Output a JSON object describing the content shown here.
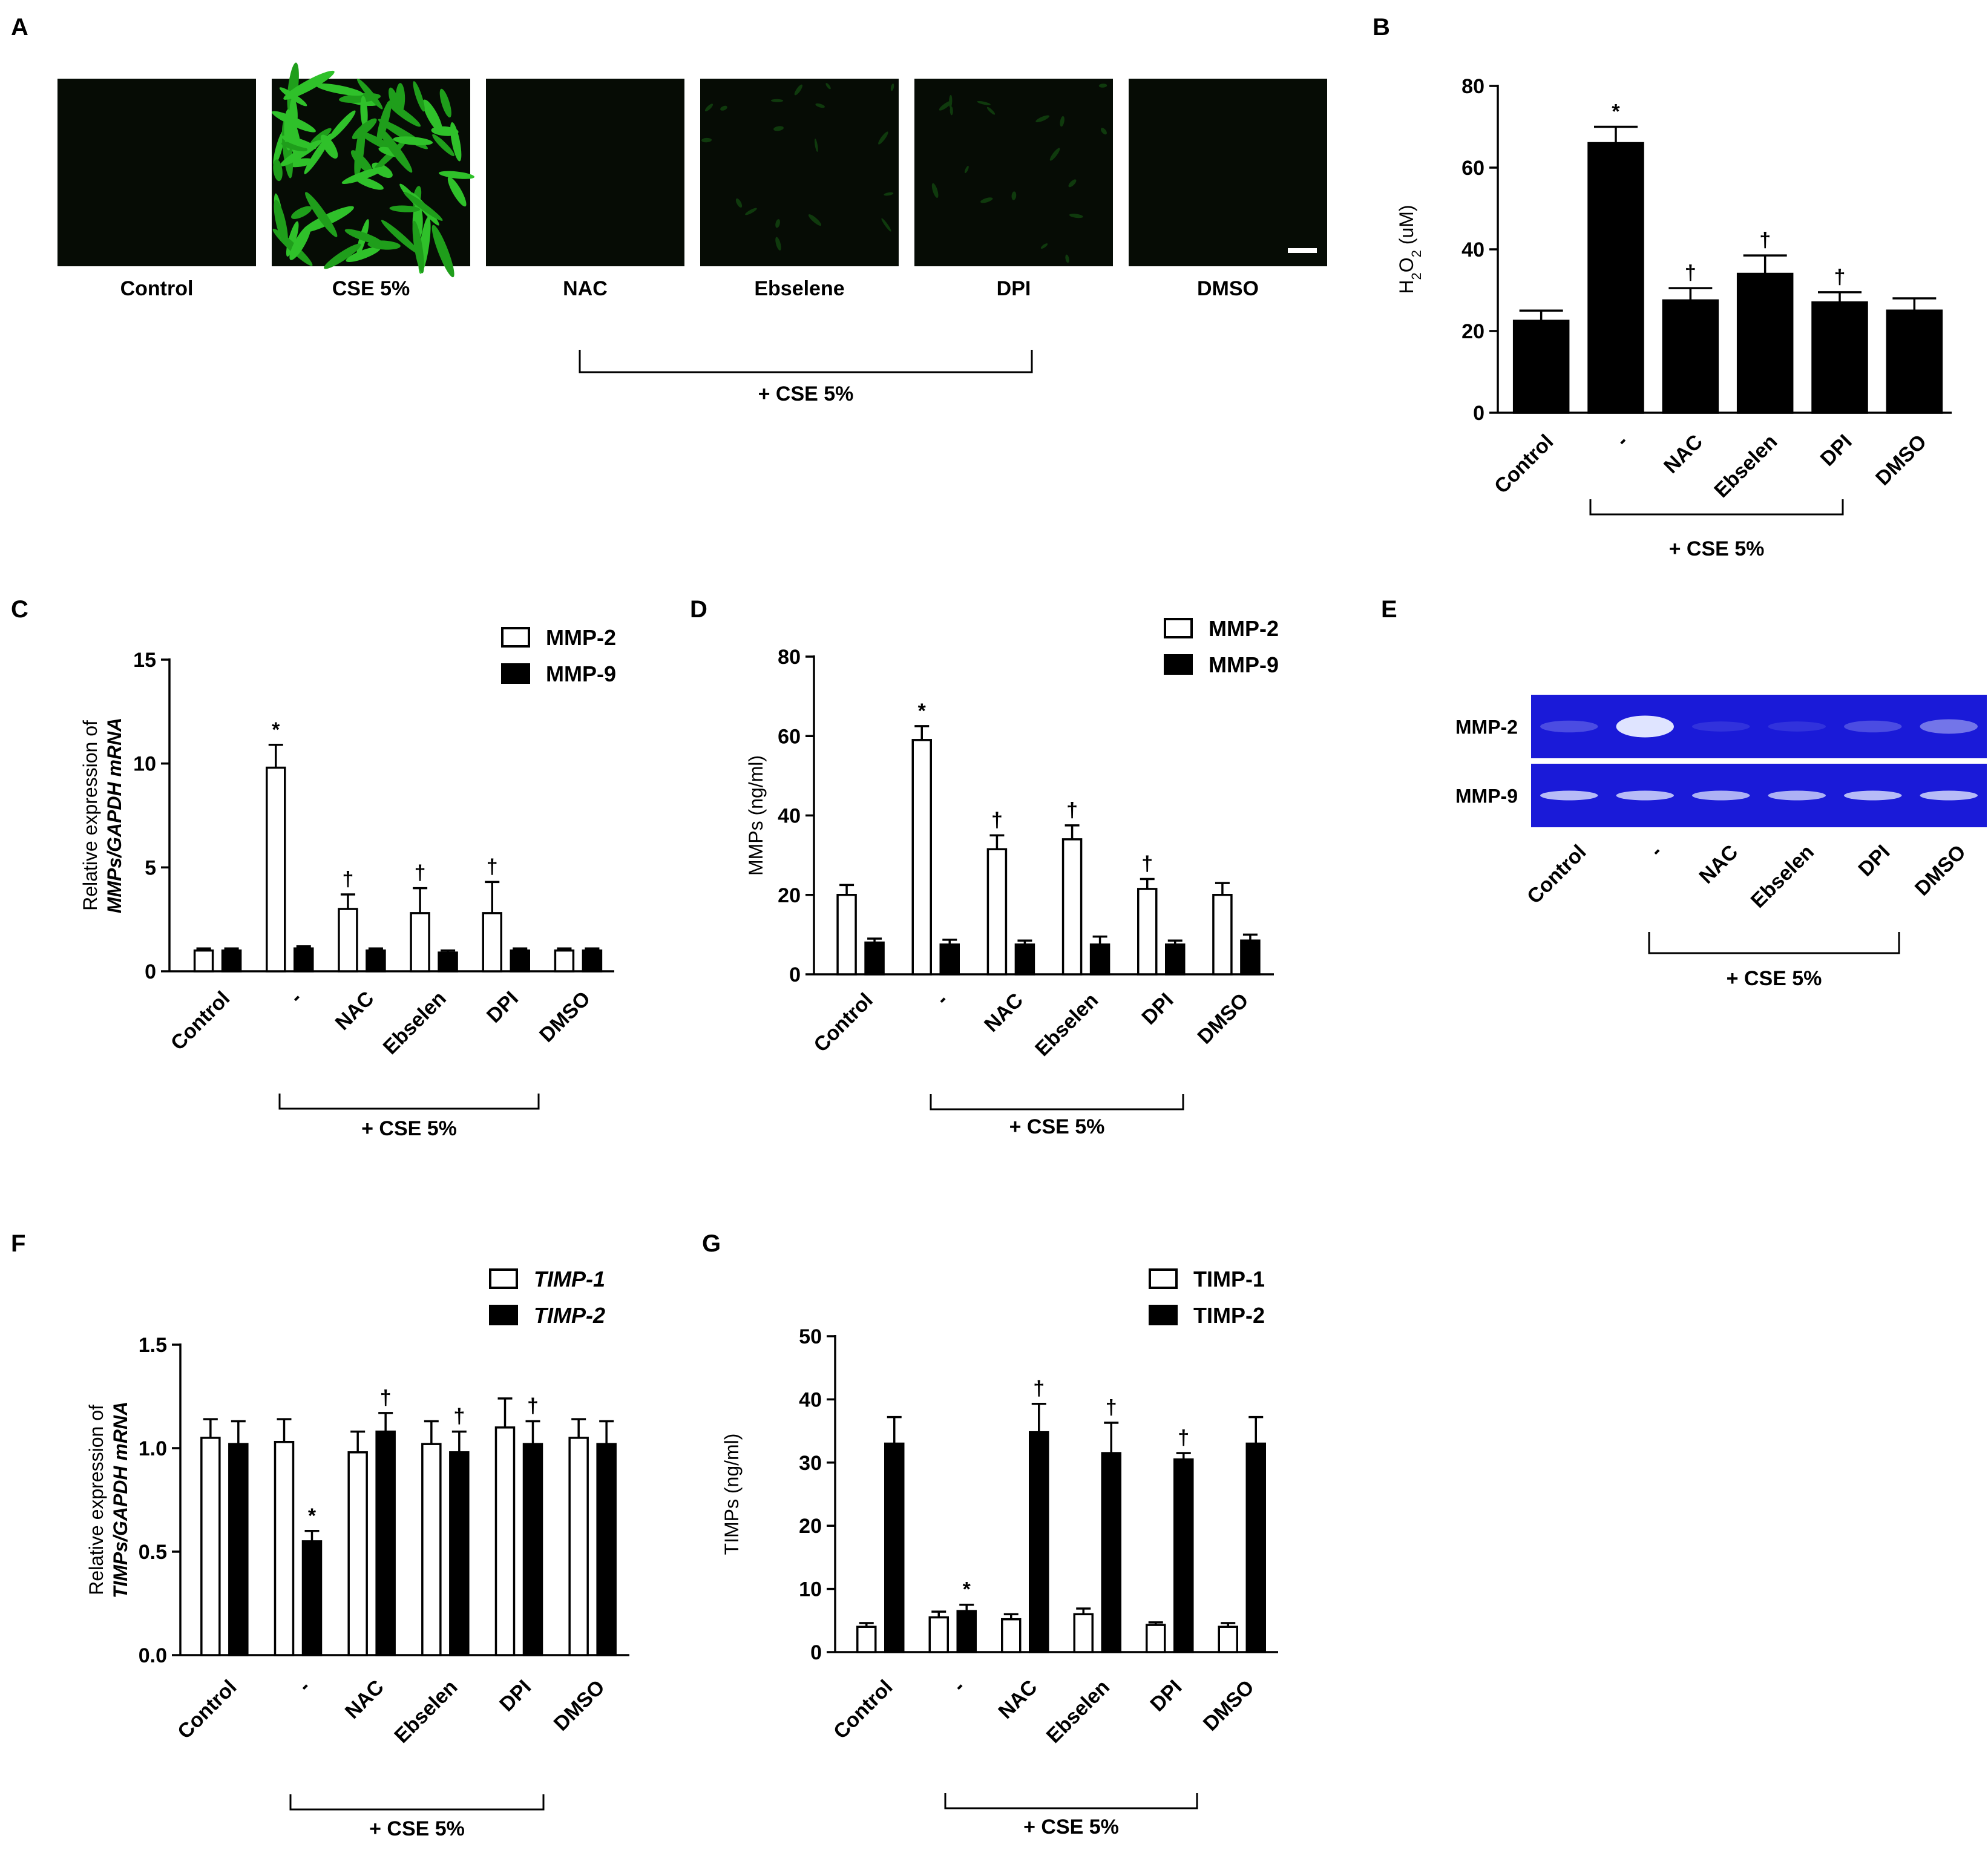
{
  "panels": {
    "A": {
      "letter": "A",
      "images": [
        {
          "label": "Control",
          "fluorescence": "none"
        },
        {
          "label": "CSE 5%",
          "fluorescence": "bright green cells"
        },
        {
          "label": "NAC",
          "fluorescence": "none"
        },
        {
          "label": "Ebselene",
          "fluorescence": "faint green"
        },
        {
          "label": "DPI",
          "fluorescence": "faint green"
        },
        {
          "label": "DMSO",
          "fluorescence": "none"
        }
      ],
      "bracket_label": "+ CSE 5%"
    },
    "E": {
      "letter": "E",
      "rows": [
        "MMP-2",
        "MMP-9"
      ],
      "lanes": [
        "Control",
        "-",
        "NAC",
        "Ebselen",
        "DPI",
        "DMSO"
      ],
      "bracket_label": "+ CSE 5%",
      "gel_color": "#1a1ad8",
      "mmp2_band_intensity": [
        0.25,
        1.0,
        0.12,
        0.12,
        0.25,
        0.45
      ],
      "mmp9_band_intensity": [
        0.8,
        0.8,
        0.75,
        0.75,
        0.8,
        0.8
      ]
    }
  },
  "chart_data": [
    {
      "panel": "B",
      "type": "bar",
      "categories": [
        "Control",
        "-",
        "NAC",
        "Ebselen",
        "DPI",
        "DMSO"
      ],
      "series": [
        {
          "values": [
            22.5,
            66,
            27.5,
            34,
            27,
            25
          ],
          "errors": [
            2.5,
            4,
            3,
            4.5,
            2.5,
            3
          ]
        }
      ],
      "annotations": [
        "",
        "*",
        "†",
        "†",
        "†",
        ""
      ],
      "ylabel_parts": [
        "H",
        "2",
        "O",
        "2",
        " (uM)"
      ],
      "ylim": [
        0,
        80
      ],
      "yticks": [
        "0",
        "20",
        "40",
        "60",
        "80"
      ],
      "bracket_label": "+ CSE 5%"
    },
    {
      "panel": "C",
      "type": "bar",
      "categories": [
        "Control",
        "-",
        "NAC",
        "Ebselen",
        "DPI",
        "DMSO"
      ],
      "series": [
        {
          "name": "MMP-2",
          "values": [
            1.0,
            9.8,
            3.0,
            2.8,
            2.8,
            1.0
          ],
          "errors": [
            0.1,
            1.1,
            0.7,
            1.2,
            1.5,
            0.1
          ]
        },
        {
          "name": "MMP-9",
          "values": [
            1.0,
            1.1,
            1.0,
            0.9,
            1.0,
            1.0
          ],
          "errors": [
            0.1,
            0.1,
            0.1,
            0.1,
            0.1,
            0.1
          ]
        }
      ],
      "annotations": [
        "",
        "*",
        "†",
        "†",
        "†",
        ""
      ],
      "ylabel_line1": "Relative expression of",
      "ylabel_line2": "MMPs/GAPDH mRNA",
      "ylim": [
        0,
        15
      ],
      "yticks": [
        "0",
        "5",
        "10",
        "15"
      ],
      "legend": "top-right",
      "bracket_label": "+ CSE 5%"
    },
    {
      "panel": "D",
      "type": "bar",
      "categories": [
        "Control",
        "-",
        "NAC",
        "Ebselen",
        "DPI",
        "DMSO"
      ],
      "series": [
        {
          "name": "MMP-2",
          "values": [
            20,
            59,
            31.5,
            34,
            21.5,
            20
          ],
          "errors": [
            2.5,
            3.5,
            3.5,
            3.5,
            2.5,
            3
          ]
        },
        {
          "name": "MMP-9",
          "values": [
            8,
            7.5,
            7.5,
            7.5,
            7.5,
            8.5
          ],
          "errors": [
            1,
            1.2,
            1,
            2,
            1,
            1.5
          ]
        }
      ],
      "annotations": [
        "",
        "*",
        "†",
        "†",
        "†",
        ""
      ],
      "ylabel": "MMPs (ng/ml)",
      "ylim": [
        0,
        80
      ],
      "yticks": [
        "0",
        "20",
        "40",
        "60",
        "80"
      ],
      "legend": "top-right",
      "bracket_label": "+ CSE 5%"
    },
    {
      "panel": "F",
      "type": "bar",
      "categories": [
        "Control",
        "-",
        "NAC",
        "Ebselen",
        "DPI",
        "DMSO"
      ],
      "series": [
        {
          "name": "TIMP-1",
          "values": [
            1.05,
            1.03,
            0.98,
            1.02,
            1.1,
            1.05
          ],
          "errors": [
            0.09,
            0.11,
            0.1,
            0.11,
            0.14,
            0.09
          ]
        },
        {
          "name": "TIMP-2",
          "values": [
            1.02,
            0.55,
            1.08,
            0.98,
            1.02,
            1.02
          ],
          "errors": [
            0.11,
            0.05,
            0.09,
            0.1,
            0.11,
            0.11
          ]
        }
      ],
      "annotations_series1": [
        "",
        "",
        "",
        "",
        "",
        ""
      ],
      "annotations_series2": [
        "",
        "*",
        "†",
        "†",
        "†",
        ""
      ],
      "ylabel_line1": "Relative expression of",
      "ylabel_line2": "TIMPs/GAPDH mRNA",
      "ylim": [
        0,
        1.5
      ],
      "yticks": [
        "0.0",
        "0.5",
        "1.0",
        "1.5"
      ],
      "legend": "top-right",
      "legend_italic": true,
      "bracket_label": "+ CSE 5%"
    },
    {
      "panel": "G",
      "type": "bar",
      "categories": [
        "Control",
        "-",
        "NAC",
        "Ebselen",
        "DPI",
        "DMSO"
      ],
      "series": [
        {
          "name": "TIMP-1",
          "values": [
            4,
            5.5,
            5.2,
            6,
            4.3,
            4
          ],
          "errors": [
            0.6,
            0.9,
            0.8,
            0.9,
            0.4,
            0.6
          ]
        },
        {
          "name": "TIMP-2",
          "values": [
            33,
            6.5,
            34.8,
            31.5,
            30.5,
            33
          ],
          "errors": [
            4.2,
            1,
            4.5,
            4.8,
            1,
            4.2
          ]
        }
      ],
      "annotations_series1": [
        "",
        "",
        "",
        "",
        "",
        ""
      ],
      "annotations_series2": [
        "",
        "*",
        "†",
        "†",
        "†",
        ""
      ],
      "ylabel": "TIMPs (ng/ml)",
      "ylim": [
        0,
        50
      ],
      "yticks": [
        "0",
        "10",
        "20",
        "30",
        "40",
        "50"
      ],
      "legend": "top-right",
      "bracket_label": "+ CSE 5%"
    }
  ]
}
